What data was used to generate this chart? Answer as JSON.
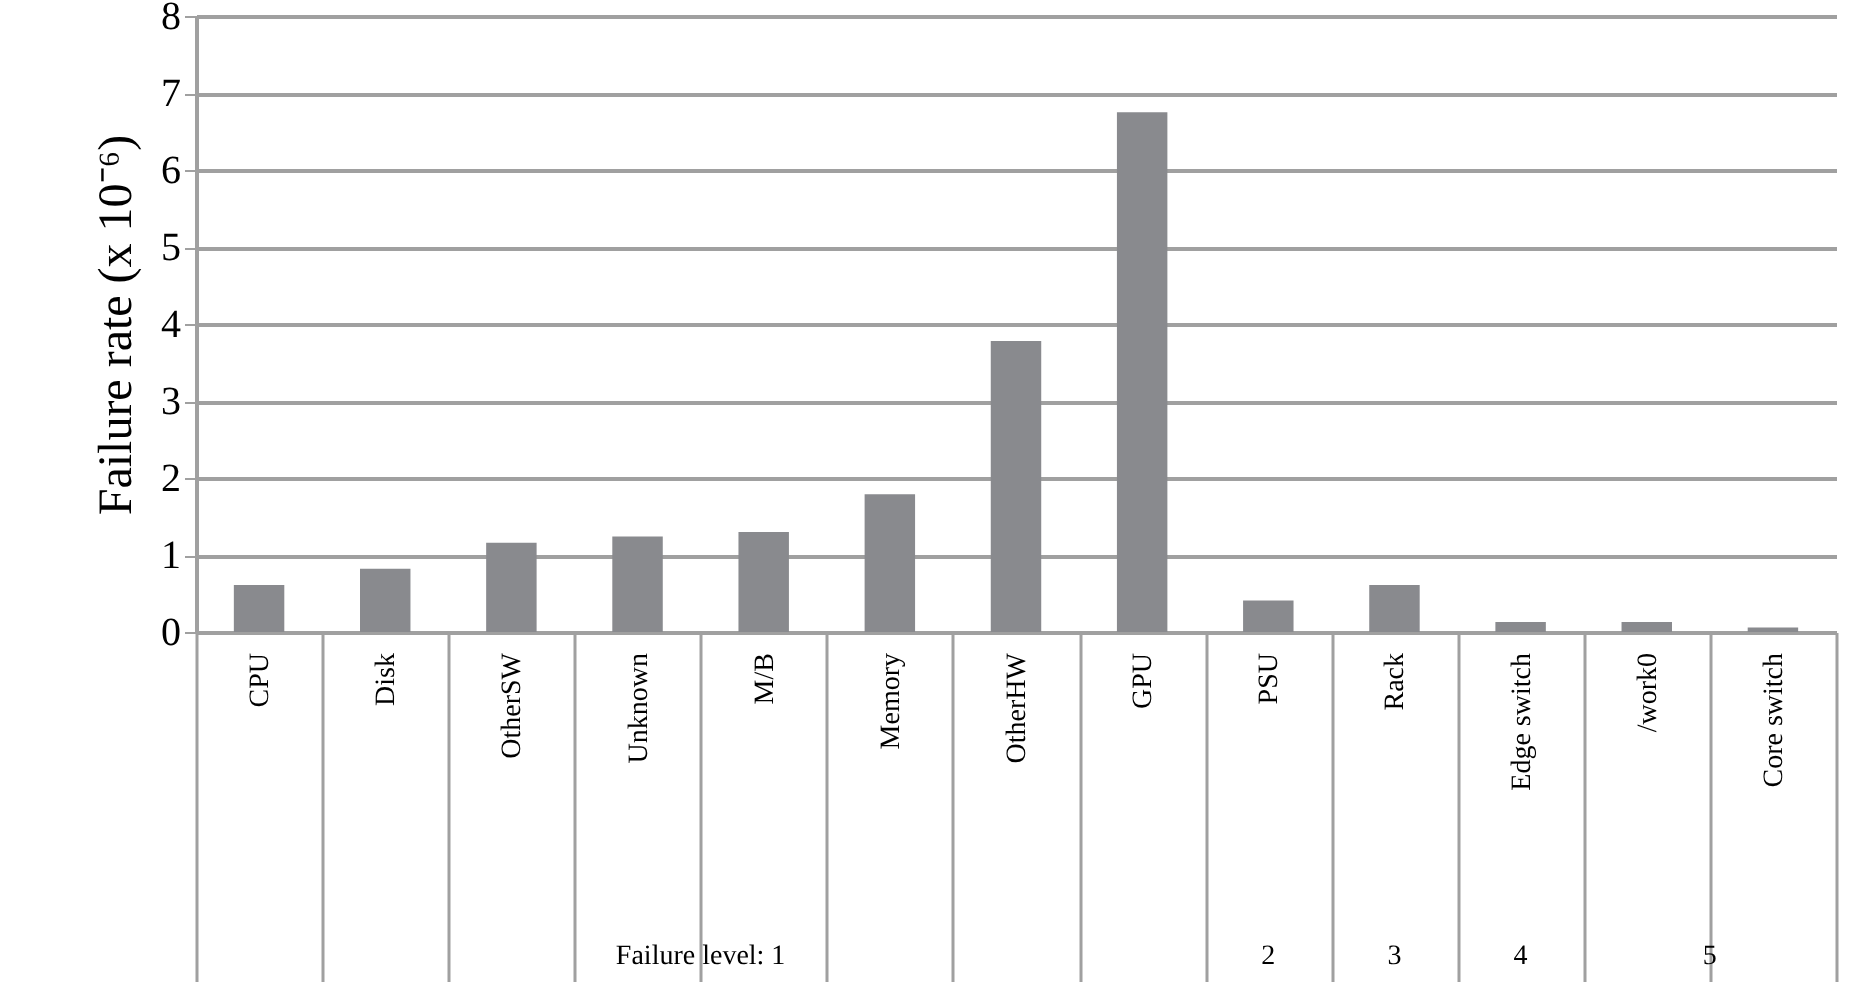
{
  "chart_data": {
    "type": "bar",
    "ylabel": "Failure rate (x 10⁻⁶)",
    "categories": [
      "CPU",
      "Disk",
      "OtherSW",
      "Unknown",
      "M/B",
      "Memory",
      "OtherHW",
      "GPU",
      "PSU",
      "Rack",
      "Edge switch",
      "/work0",
      "Core switch"
    ],
    "values": [
      0.61,
      0.82,
      1.16,
      1.24,
      1.3,
      1.79,
      3.78,
      6.75,
      0.41,
      0.61,
      0.13,
      0.13,
      0.06
    ],
    "color": "#898a8e",
    "ylim": [
      0,
      8
    ],
    "yticks": [
      0,
      1,
      2,
      3,
      4,
      5,
      6,
      7,
      8
    ],
    "grid": "y",
    "annotations": [
      "Failure level: 1",
      "2",
      "3",
      "4",
      "5"
    ]
  }
}
